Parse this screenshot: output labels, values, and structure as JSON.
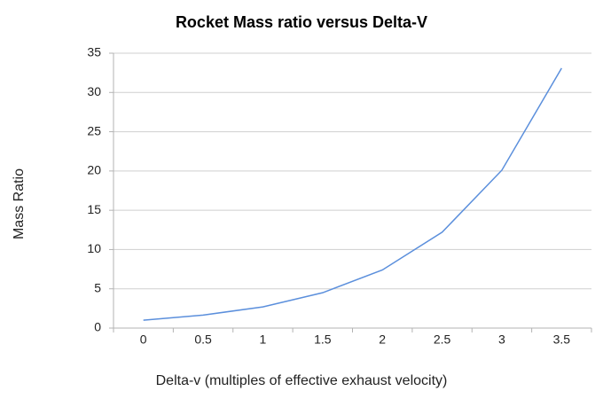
{
  "chart_data": {
    "type": "line",
    "title": "Rocket Mass ratio versus Delta-V",
    "x_label": "Delta-v (multiples of effective exhaust velocity)",
    "y_label": "Mass Ratio",
    "categories": [
      "0",
      "0.5",
      "1",
      "1.5",
      "2",
      "2.5",
      "3",
      "3.5"
    ],
    "values": [
      1,
      1.65,
      2.7,
      4.5,
      7.4,
      12.2,
      20.1,
      33.1
    ],
    "color": "#5b8fdc",
    "ylim": [
      0,
      35
    ],
    "yticks": [
      0,
      5,
      10,
      15,
      20,
      25,
      30,
      35
    ],
    "grid": true
  }
}
